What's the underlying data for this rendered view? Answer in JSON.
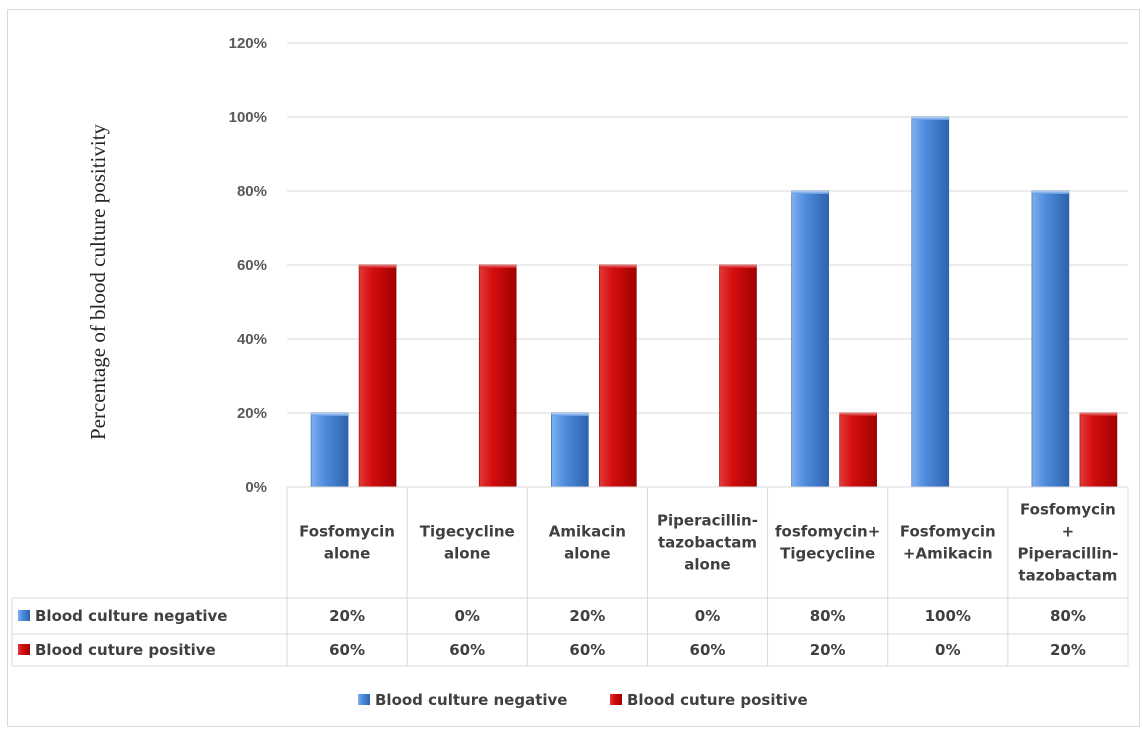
{
  "chart_data": {
    "type": "bar",
    "ylabel": "Percentage of blood culture positivity",
    "ylim": [
      0,
      120
    ],
    "yticks": [
      "0%",
      "20%",
      "40%",
      "60%",
      "80%",
      "100%",
      "120%"
    ],
    "grid": true,
    "legend_position": "bottom",
    "categories": [
      [
        "Fosfomycin",
        "alone"
      ],
      [
        "Tigecycline",
        "alone"
      ],
      [
        "Amikacin",
        "alone"
      ],
      [
        "Piperacillin-",
        "tazobactam",
        "alone"
      ],
      [
        "fosfomycin+",
        "Tigecycline"
      ],
      [
        "Fosfomycin",
        "+Amikacin"
      ],
      [
        "Fosfomycin",
        "+",
        "Piperacillin-",
        "tazobactam"
      ]
    ],
    "series": [
      {
        "name": "Blood culture negative",
        "color": "#4a86d8",
        "values": [
          20,
          0,
          20,
          0,
          80,
          100,
          80
        ],
        "labels": [
          "20%",
          "0%",
          "20%",
          "0%",
          "80%",
          "100%",
          "80%"
        ]
      },
      {
        "name": "Blood cuture positive",
        "color": "#cc0000",
        "values": [
          60,
          60,
          60,
          60,
          20,
          0,
          20
        ],
        "labels": [
          "60%",
          "60%",
          "60%",
          "60%",
          "20%",
          "0%",
          "20%"
        ]
      }
    ]
  }
}
